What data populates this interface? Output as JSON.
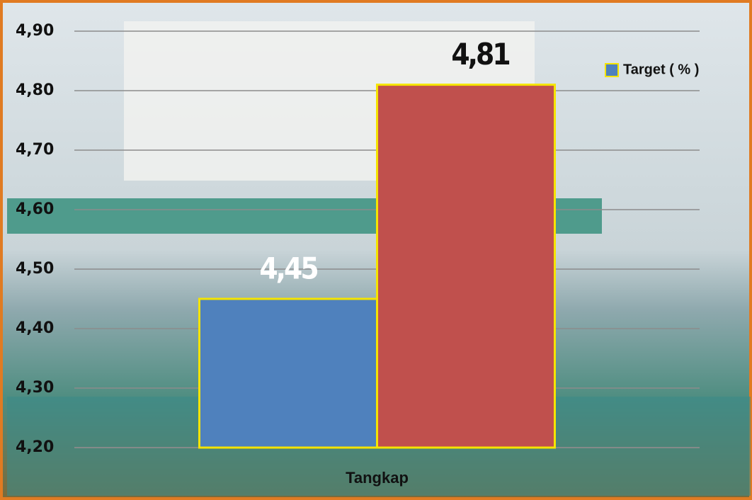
{
  "chart_data": {
    "type": "bar",
    "categories": [
      "Tangkap"
    ],
    "series": [
      {
        "name": "Target ( % )",
        "color": "#4f81bd",
        "values": [
          4.45
        ],
        "value_labels": [
          "4,45"
        ]
      },
      {
        "color": "#c0504d",
        "values": [
          4.81
        ],
        "value_labels": [
          "4,81"
        ]
      }
    ],
    "ylim": [
      4.2,
      4.9
    ],
    "yticks": [
      {
        "value": 4.2,
        "label": "4,20"
      },
      {
        "value": 4.3,
        "label": "4,30"
      },
      {
        "value": 4.4,
        "label": "4,40"
      },
      {
        "value": 4.5,
        "label": "4,50"
      },
      {
        "value": 4.6,
        "label": "4,60"
      },
      {
        "value": 4.7,
        "label": "4,70"
      },
      {
        "value": 4.8,
        "label": "4,80"
      },
      {
        "value": 4.9,
        "label": "4,90"
      }
    ],
    "grid": true,
    "legend": "top-right"
  }
}
